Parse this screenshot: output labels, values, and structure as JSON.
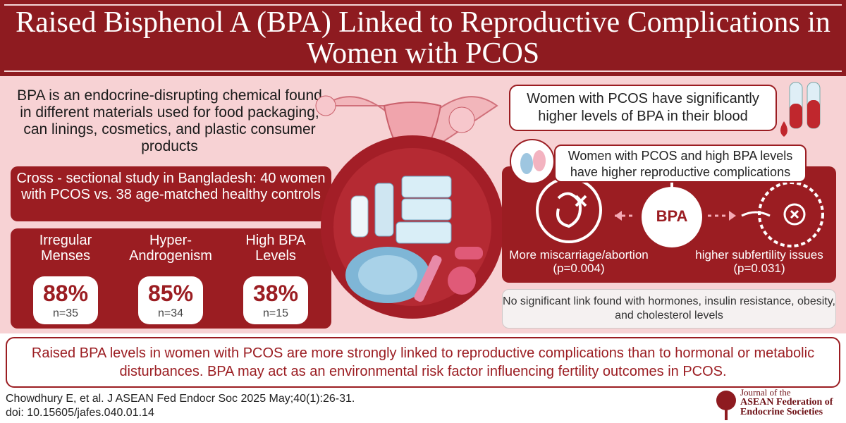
{
  "header": {
    "title": "Raised Bisphenol A (BPA) Linked to Reproductive Complications in Women with PCOS"
  },
  "intro": "BPA is an endocrine-disrupting chemical found in different materials used for food packaging, can linings, cosmetics, and plastic consumer products",
  "study": "Cross - sectional study in Bangladesh: 40 women with PCOS vs. 38 age-matched healthy controls",
  "stats": [
    {
      "label": "Irregular Menses",
      "value": "88%",
      "n": "n=35"
    },
    {
      "label": "Hyper-Androgenism",
      "value": "85%",
      "n": "n=34"
    },
    {
      "label": "High BPA Levels",
      "value": "38%",
      "n": "n=15"
    }
  ],
  "findings": {
    "blood": "Women with PCOS have significantly higher levels of BPA in their blood",
    "complications": "Women with PCOS and high BPA levels have higher reproductive complications",
    "center": "BPA",
    "outcomes": [
      {
        "label": "More miscarriage/abortion",
        "p": "(p=0.004)"
      },
      {
        "label": "higher subfertility issues",
        "p": "(p=0.031)"
      }
    ],
    "note": "No significant link found with hormones, insulin resistance, obesity, and cholesterol levels"
  },
  "conclusion": "Raised BPA levels in women with PCOS are more strongly linked to reproductive complications than to hormonal or metabolic disturbances. BPA may act as an environmental risk factor influencing fertility outcomes in PCOS.",
  "citation": {
    "reference": "Chowdhury E, et al. J ASEAN Fed Endocr Soc 2025 May;40(1):26-31.",
    "doi": "doi: 10.15605/jafes.040.01.14"
  },
  "logo": [
    "Journal of the",
    "ASEAN Federation of",
    "Endocrine Societies"
  ]
}
